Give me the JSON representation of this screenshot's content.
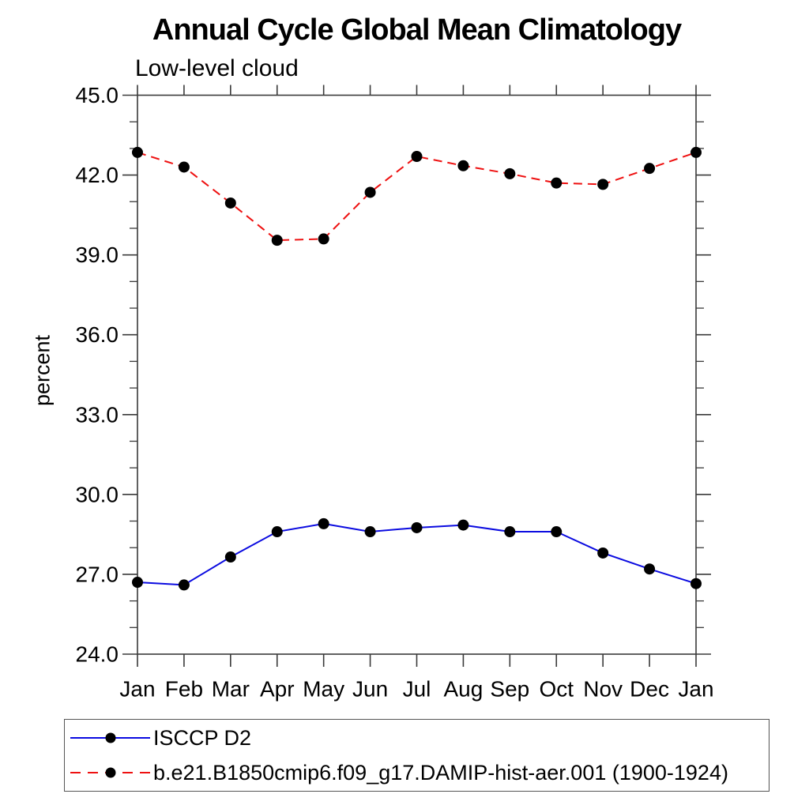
{
  "chart_data": {
    "type": "line",
    "title": "Annual Cycle Global Mean Climatology",
    "subtitle": "Low-level cloud",
    "ylabel": "percent",
    "xlabel": "",
    "categories": [
      "Jan",
      "Feb",
      "Mar",
      "Apr",
      "May",
      "Jun",
      "Jul",
      "Aug",
      "Sep",
      "Oct",
      "Nov",
      "Dec",
      "Jan"
    ],
    "ylim": [
      24.0,
      45.0
    ],
    "yticks": [
      24.0,
      27.0,
      30.0,
      33.0,
      36.0,
      39.0,
      42.0,
      45.0
    ],
    "ytick_labels": [
      "24.0",
      "27.0",
      "30.0",
      "33.0",
      "36.0",
      "39.0",
      "42.0",
      "45.0"
    ],
    "y_minor_tick_interval": 1.0,
    "grid": false,
    "frame": "box-with-outward-ticks",
    "legend_position": "bottom-left-box",
    "axis_color": "#3a3a3a",
    "marker_radius": 7,
    "series": [
      {
        "name": "ISCCP D2",
        "color": "#0b0be0",
        "line_style": "solid",
        "marker": "filled-circle",
        "marker_color": "#000000",
        "values": [
          26.7,
          26.6,
          27.65,
          28.6,
          28.9,
          28.6,
          28.75,
          28.85,
          28.6,
          28.6,
          27.8,
          27.2,
          26.65
        ]
      },
      {
        "name": "b.e21.B1850cmip6.f09_g17.DAMIP-hist-aer.001 (1900-1924)",
        "color": "#ee1111",
        "line_style": "dashed",
        "marker": "filled-circle",
        "marker_color": "#000000",
        "values": [
          42.85,
          42.3,
          40.95,
          39.55,
          39.6,
          41.35,
          42.7,
          42.35,
          42.05,
          41.7,
          41.65,
          42.25,
          42.85
        ]
      }
    ]
  }
}
